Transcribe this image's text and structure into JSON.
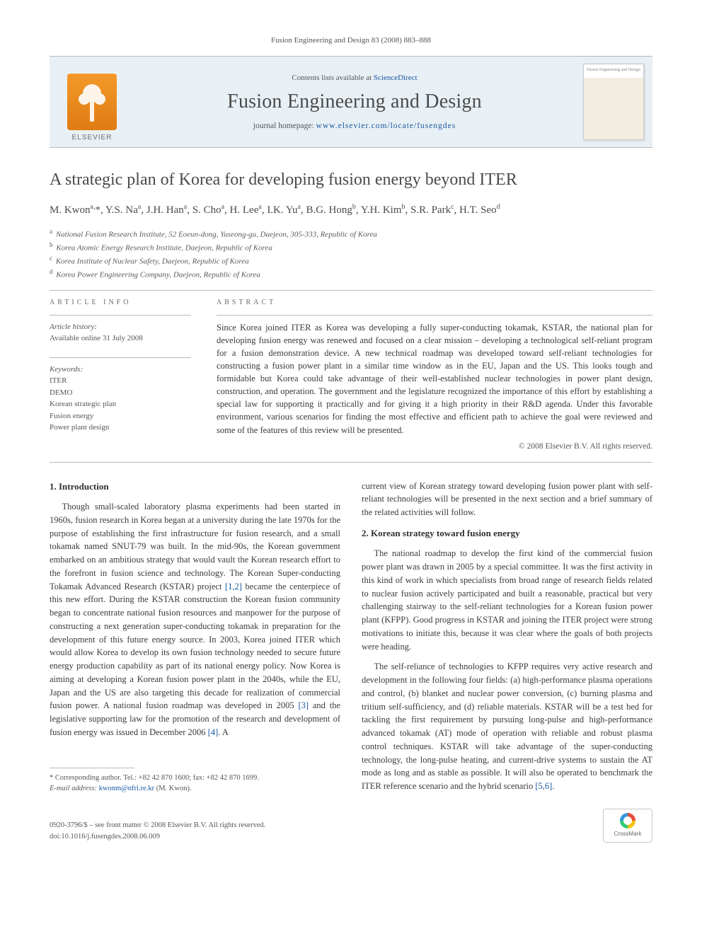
{
  "running_head": "Fusion Engineering and Design 83 (2008) 883–888",
  "header": {
    "contents_prefix": "Contents lists available at ",
    "contents_link": "ScienceDirect",
    "journal_name": "Fusion Engineering and Design",
    "homepage_prefix": "journal homepage: ",
    "homepage_url": "www.elsevier.com/locate/fusengdes",
    "publisher_word": "ELSEVIER",
    "thumb_label": "Fusion Engineering and Design"
  },
  "title": "A strategic plan of Korea for developing fusion energy beyond ITER",
  "authors_html": "M. Kwon<sup>a,</sup><span class='star'>*</span>, Y.S. Na<sup>a</sup>, J.H. Han<sup>a</sup>, S. Cho<sup>a</sup>, H. Lee<sup>a</sup>, I.K. Yu<sup>a</sup>, B.G. Hong<sup>b</sup>, Y.H. Kim<sup>b</sup>, S.R. Park<sup>c</sup>, H.T. Seo<sup>d</sup>",
  "affiliations": [
    {
      "sup": "a",
      "text": "National Fusion Research Institute, 52 Eoeun-dong, Yuseong-gu, Daejeon, 305-333, Republic of Korea"
    },
    {
      "sup": "b",
      "text": "Korea Atomic Energy Research Institute, Daejeon, Republic of Korea"
    },
    {
      "sup": "c",
      "text": "Korea Institute of Nuclear Safety, Daejeon, Republic of Korea"
    },
    {
      "sup": "d",
      "text": "Korea Power Engineering Company, Daejeon, Republic of Korea"
    }
  ],
  "article_info_heading": "ARTICLE INFO",
  "abstract_heading": "ABSTRACT",
  "history": {
    "label": "Article history:",
    "line1": "Available online 31 July 2008"
  },
  "keywords_label": "Keywords:",
  "keywords": [
    "ITER",
    "DEMO",
    "Korean strategic plan",
    "Fusion energy",
    "Power plant design"
  ],
  "abstract": "Since Korea joined ITER as Korea was developing a fully super-conducting tokamak, KSTAR, the national plan for developing fusion energy was renewed and focused on a clear mission – developing a technological self-reliant program for a fusion demonstration device. A new technical roadmap was developed toward self-reliant technologies for constructing a fusion power plant in a similar time window as in the EU, Japan and the US. This looks tough and formidable but Korea could take advantage of their well-established nuclear technologies in power plant design, construction, and operation. The government and the legislature recognized the importance of this effort by establishing a special law for supporting it practically and for giving it a high priority in their R&D agenda. Under this favorable environment, various scenarios for finding the most effective and efficient path to achieve the goal were reviewed and some of the features of this review will be presented.",
  "copyright": "© 2008 Elsevier B.V. All rights reserved.",
  "sections": {
    "s1": {
      "heading": "1.  Introduction",
      "p1a": "Though small-scaled laboratory plasma experiments had been started in 1960s, fusion research in Korea began at a university during the late 1970s for the purpose of establishing the first infrastructure for fusion research, and a small tokamak named SNUT-79 was built. In the mid-90s, the Korean government embarked on an ambitious strategy that would vault the Korean research effort to the forefront in fusion science and technology. The Korean Super-conducting Tokamak Advanced Research (KSTAR) project ",
      "ref12": "[1,2]",
      "p1b": " became the centerpiece of this new effort. During the KSTAR construction the Korean fusion community began to concentrate national fusion resources and manpower for the purpose of constructing a next generation super-conducting tokamak in preparation for the development of this future energy source. In 2003, Korea joined ITER which would allow Korea to develop its own fusion technology needed to secure future energy production capability as part of its national energy policy. Now Korea is aiming at developing a Korean fusion power plant in the 2040s, while the EU, Japan and the US are also targeting this decade for realization of commercial fusion power. A national fusion roadmap was developed in 2005 ",
      "ref3": "[3]",
      "p1c": " and the legislative supporting law for the promotion of the research and development of fusion energy was issued in December 2006 ",
      "ref4": "[4]",
      "p1d": ". A ",
      "p1e": "current view of Korean strategy toward developing fusion power plant with self-reliant technologies will be presented in the next section and a brief summary of the related activities will follow."
    },
    "s2": {
      "heading": "2.  Korean strategy toward fusion energy",
      "p1": "The national roadmap to develop the first kind of the commercial fusion power plant was drawn in 2005 by a special committee. It was the first activity in this kind of work in which specialists from broad range of research fields related to nuclear fusion actively participated and built a reasonable, practical but very challenging stairway to the self-reliant technologies for a Korean fusion power plant (KFPP). Good progress in KSTAR and joining the ITER project were strong motivations to initiate this, because it was clear where the goals of both projects were heading.",
      "p2a": "The self-reliance of technologies to KFPP requires very active research and development in the following four fields: (a) high-performance plasma operations and control, (b) blanket and nuclear power conversion, (c) burning plasma and tritium self-sufficiency, and (d) reliable materials. KSTAR will be a test bed for tackling the first requirement by pursuing long-pulse and high-performance advanced tokamak (AT) mode of operation with reliable and robust plasma control techniques. KSTAR will take advantage of the super-conducting technology, the long-pulse heating, and current-drive systems to sustain the AT mode as long and as stable as possible. It will also be operated to benchmark the ITER reference scenario and the hybrid scenario ",
      "ref56": "[5,6]",
      "p2b": "."
    }
  },
  "footnote": {
    "star": "*",
    "label": " Corresponding author. Tel.: +82 42 870 1600; fax: +82 42 870 1699.",
    "email_label": "E-mail address: ",
    "email": "kwonm@nfri.re.kr",
    "email_tail": " (M. Kwon)."
  },
  "bottom": {
    "issn_line1": "0920-3796/$ – see front matter © 2008 Elsevier B.V. All rights reserved.",
    "doi": "doi:10.1016/j.fusengdes.2008.06.009",
    "crossmark": "CrossMark"
  },
  "colors": {
    "link": "#1557a0",
    "band_bg": "#e9f0f5",
    "rule": "#b8b8b8",
    "text": "#3a3a3a",
    "muted": "#555555",
    "elsevier_orange": "#e9841f"
  }
}
